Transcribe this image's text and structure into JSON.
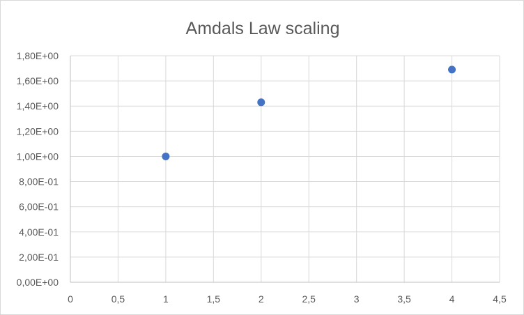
{
  "chart_data": {
    "type": "scatter",
    "title": "Amdals Law scaling",
    "xlabel": "",
    "ylabel": "",
    "x": [
      1,
      2,
      4
    ],
    "y": [
      1.0,
      1.43,
      1.69
    ],
    "xlim": [
      0,
      4.5
    ],
    "ylim": [
      0,
      1.8
    ],
    "x_ticks": [
      0,
      0.5,
      1,
      1.5,
      2,
      2.5,
      3,
      3.5,
      4,
      4.5
    ],
    "y_ticks": [
      0,
      0.2,
      0.4,
      0.6,
      0.8,
      1.0,
      1.2,
      1.4,
      1.6,
      1.8
    ],
    "x_tick_labels": [
      "0",
      "0,5",
      "1",
      "1,5",
      "2",
      "2,5",
      "3",
      "3,5",
      "4",
      "4,5"
    ],
    "y_tick_labels": [
      "0,00E+00",
      "2,00E-01",
      "4,00E-01",
      "6,00E-01",
      "8,00E-01",
      "1,00E+00",
      "1,20E+00",
      "1,40E+00",
      "1,60E+00",
      "1,80E+00"
    ],
    "grid": true,
    "legend": "none",
    "marker_color": "#4472c4",
    "grid_color": "#d9d9d9",
    "text_color": "#595959"
  }
}
